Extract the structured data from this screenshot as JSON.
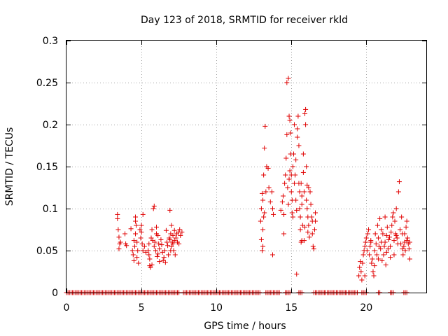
{
  "chart_data": {
    "type": "scatter",
    "title": "Day 123 of 2018, SRMTID for receiver rkld",
    "xlabel": "GPS time / hours",
    "ylabel": "SRMTID / TECUs",
    "xlim": [
      0,
      24
    ],
    "ylim": [
      0,
      0.3
    ],
    "xticks": [
      0,
      5,
      10,
      15,
      20
    ],
    "yticks": [
      0,
      0.05,
      0.1,
      0.15,
      0.2,
      0.25,
      0.3
    ],
    "xtick_labels": [
      "0",
      "5",
      "10",
      "15",
      "20"
    ],
    "ytick_labels": [
      "0",
      "0.05",
      "0.1",
      "0.15",
      "0.2",
      "0.25",
      "0.3"
    ],
    "grid": true,
    "marker": "+",
    "color": "#e00000",
    "series": [
      {
        "name": "SRMTID",
        "points": [
          [
            3.4,
            0.093
          ],
          [
            3.4,
            0.088
          ],
          [
            3.45,
            0.075
          ],
          [
            3.5,
            0.066
          ],
          [
            3.55,
            0.058
          ],
          [
            3.5,
            0.052
          ],
          [
            3.6,
            0.06
          ],
          [
            3.9,
            0.07
          ],
          [
            3.95,
            0.058
          ],
          [
            4.0,
            0.056
          ],
          [
            4.3,
            0.076
          ],
          [
            4.4,
            0.05
          ],
          [
            4.45,
            0.045
          ],
          [
            4.5,
            0.038
          ],
          [
            4.5,
            0.062
          ],
          [
            4.55,
            0.055
          ],
          [
            4.6,
            0.07
          ],
          [
            4.6,
            0.085
          ],
          [
            4.65,
            0.08
          ],
          [
            4.7,
            0.06
          ],
          [
            4.7,
            0.042
          ],
          [
            4.75,
            0.05
          ],
          [
            4.8,
            0.035
          ],
          [
            4.6,
            0.09
          ],
          [
            4.9,
            0.075
          ],
          [
            4.95,
            0.065
          ],
          [
            5.0,
            0.08
          ],
          [
            5.0,
            0.072
          ],
          [
            5.05,
            0.058
          ],
          [
            5.1,
            0.05
          ],
          [
            5.1,
            0.093
          ],
          [
            5.2,
            0.055
          ],
          [
            5.3,
            0.048
          ],
          [
            5.45,
            0.05
          ],
          [
            5.5,
            0.045
          ],
          [
            5.5,
            0.058
          ],
          [
            5.55,
            0.04
          ],
          [
            5.55,
            0.032
          ],
          [
            5.6,
            0.03
          ],
          [
            5.65,
            0.065
          ],
          [
            5.7,
            0.075
          ],
          [
            5.7,
            0.033
          ],
          [
            5.75,
            0.062
          ],
          [
            5.8,
            0.1
          ],
          [
            5.85,
            0.103
          ],
          [
            5.85,
            0.055
          ],
          [
            5.9,
            0.06
          ],
          [
            5.95,
            0.05
          ],
          [
            6.0,
            0.078
          ],
          [
            6.0,
            0.07
          ],
          [
            6.05,
            0.043
          ],
          [
            6.1,
            0.046
          ],
          [
            6.1,
            0.068
          ],
          [
            6.15,
            0.058
          ],
          [
            6.2,
            0.052
          ],
          [
            6.2,
            0.037
          ],
          [
            6.3,
            0.063
          ],
          [
            6.35,
            0.057
          ],
          [
            6.4,
            0.048
          ],
          [
            6.45,
            0.038
          ],
          [
            6.5,
            0.042
          ],
          [
            6.55,
            0.05
          ],
          [
            6.6,
            0.036
          ],
          [
            6.65,
            0.074
          ],
          [
            6.7,
            0.06
          ],
          [
            6.75,
            0.056
          ],
          [
            6.8,
            0.045
          ],
          [
            6.85,
            0.065
          ],
          [
            6.9,
            0.063
          ],
          [
            6.9,
            0.098
          ],
          [
            6.95,
            0.07
          ],
          [
            7.0,
            0.08
          ],
          [
            7.0,
            0.055
          ],
          [
            7.05,
            0.06
          ],
          [
            7.1,
            0.068
          ],
          [
            7.15,
            0.05
          ],
          [
            7.2,
            0.062
          ],
          [
            7.25,
            0.045
          ],
          [
            7.3,
            0.065
          ],
          [
            7.35,
            0.07
          ],
          [
            7.4,
            0.06
          ],
          [
            7.45,
            0.072
          ],
          [
            7.5,
            0.058
          ],
          [
            7.55,
            0.075
          ],
          [
            7.6,
            0.068
          ],
          [
            7.7,
            0.072
          ],
          [
            6.95,
            0.05
          ],
          [
            7.1,
            0.058
          ],
          [
            7.2,
            0.074
          ],
          [
            12.95,
            0.085
          ],
          [
            13.0,
            0.1
          ],
          [
            13.0,
            0.063
          ],
          [
            13.05,
            0.05
          ],
          [
            13.05,
            0.118
          ],
          [
            13.1,
            0.11
          ],
          [
            13.1,
            0.075
          ],
          [
            13.1,
            0.055
          ],
          [
            13.15,
            0.14
          ],
          [
            13.15,
            0.09
          ],
          [
            13.2,
            0.095
          ],
          [
            13.2,
            0.172
          ],
          [
            13.25,
            0.198
          ],
          [
            13.3,
            0.12
          ],
          [
            13.35,
            0.15
          ],
          [
            13.45,
            0.148
          ],
          [
            13.5,
            0.125
          ],
          [
            13.6,
            0.108
          ],
          [
            13.7,
            0.12
          ],
          [
            13.75,
            0.045
          ],
          [
            13.75,
            0.1
          ],
          [
            13.8,
            0.093
          ],
          [
            14.3,
            0.098
          ],
          [
            14.4,
            0.108
          ],
          [
            14.45,
            0.115
          ],
          [
            14.5,
            0.07
          ],
          [
            14.5,
            0.093
          ],
          [
            14.55,
            0.13
          ],
          [
            14.6,
            0.14
          ],
          [
            14.65,
            0.16
          ],
          [
            14.7,
            0.188
          ],
          [
            14.7,
            0.25
          ],
          [
            14.75,
            0.125
          ],
          [
            14.8,
            0.105
          ],
          [
            14.8,
            0.255
          ],
          [
            14.85,
            0.21
          ],
          [
            14.85,
            0.135
          ],
          [
            14.9,
            0.145
          ],
          [
            14.9,
            0.205
          ],
          [
            14.95,
            0.19
          ],
          [
            15.0,
            0.14
          ],
          [
            15.0,
            0.12
          ],
          [
            15.05,
            0.11
          ],
          [
            15.05,
            0.095
          ],
          [
            15.1,
            0.09
          ],
          [
            15.1,
            0.15
          ],
          [
            15.15,
            0.165
          ],
          [
            15.2,
            0.2
          ],
          [
            15.2,
            0.13
          ],
          [
            15.25,
            0.14
          ],
          [
            15.3,
            0.158
          ],
          [
            15.3,
            0.11
          ],
          [
            15.35,
            0.098
          ],
          [
            15.4,
            0.185
          ],
          [
            15.4,
            0.195
          ],
          [
            15.45,
            0.21
          ],
          [
            15.5,
            0.175
          ],
          [
            15.5,
            0.13
          ],
          [
            15.55,
            0.12
          ],
          [
            15.55,
            0.1
          ],
          [
            15.6,
            0.09
          ],
          [
            15.6,
            0.075
          ],
          [
            15.65,
            0.06
          ],
          [
            15.7,
            0.105
          ],
          [
            15.7,
            0.115
          ],
          [
            15.75,
            0.08
          ],
          [
            15.8,
            0.143
          ],
          [
            15.8,
            0.165
          ],
          [
            15.85,
            0.062
          ],
          [
            15.85,
            0.12
          ],
          [
            15.9,
            0.078
          ],
          [
            15.9,
            0.213
          ],
          [
            15.95,
            0.218
          ],
          [
            15.95,
            0.2
          ],
          [
            16.0,
            0.11
          ],
          [
            16.0,
            0.15
          ],
          [
            16.05,
            0.128
          ],
          [
            16.05,
            0.1
          ],
          [
            16.1,
            0.09
          ],
          [
            16.1,
            0.072
          ],
          [
            16.15,
            0.08
          ],
          [
            16.2,
            0.066
          ],
          [
            16.25,
            0.12
          ],
          [
            16.3,
            0.105
          ],
          [
            16.35,
            0.09
          ],
          [
            16.4,
            0.07
          ],
          [
            16.45,
            0.055
          ],
          [
            16.5,
            0.052
          ],
          [
            16.55,
            0.075
          ],
          [
            16.6,
            0.085
          ],
          [
            16.6,
            0.095
          ],
          [
            15.35,
            0.022
          ],
          [
            15.7,
            0.062
          ],
          [
            14.95,
            0.165
          ],
          [
            15.65,
            0.13
          ],
          [
            16.15,
            0.125
          ],
          [
            16.4,
            0.085
          ],
          [
            19.5,
            0.02
          ],
          [
            19.55,
            0.03
          ],
          [
            19.6,
            0.037
          ],
          [
            19.65,
            0.025
          ],
          [
            19.7,
            0.015
          ],
          [
            19.75,
            0.035
          ],
          [
            19.8,
            0.045
          ],
          [
            19.85,
            0.05
          ],
          [
            19.9,
            0.055
          ],
          [
            19.95,
            0.06
          ],
          [
            20.0,
            0.065
          ],
          [
            20.05,
            0.05
          ],
          [
            20.1,
            0.07
          ],
          [
            20.15,
            0.075
          ],
          [
            20.2,
            0.045
          ],
          [
            20.25,
            0.055
          ],
          [
            20.3,
            0.06
          ],
          [
            20.35,
            0.035
          ],
          [
            20.4,
            0.04
          ],
          [
            20.45,
            0.025
          ],
          [
            20.5,
            0.02
          ],
          [
            20.55,
            0.05
          ],
          [
            20.6,
            0.07
          ],
          [
            20.65,
            0.058
          ],
          [
            20.7,
            0.045
          ],
          [
            20.75,
            0.08
          ],
          [
            20.8,
            0.065
          ],
          [
            20.85,
            0.055
          ],
          [
            20.9,
            0.088
          ],
          [
            20.95,
            0.052
          ],
          [
            21.0,
            0.06
          ],
          [
            21.05,
            0.038
          ],
          [
            21.1,
            0.07
          ],
          [
            21.15,
            0.045
          ],
          [
            21.2,
            0.055
          ],
          [
            21.25,
            0.06
          ],
          [
            21.3,
            0.033
          ],
          [
            21.35,
            0.048
          ],
          [
            21.4,
            0.078
          ],
          [
            21.45,
            0.052
          ],
          [
            21.5,
            0.063
          ],
          [
            21.55,
            0.066
          ],
          [
            21.6,
            0.042
          ],
          [
            21.65,
            0.072
          ],
          [
            21.7,
            0.08
          ],
          [
            21.75,
            0.09
          ],
          [
            21.8,
            0.095
          ],
          [
            21.85,
            0.062
          ],
          [
            21.9,
            0.085
          ],
          [
            21.95,
            0.07
          ],
          [
            22.0,
            0.1
          ],
          [
            22.05,
            0.065
          ],
          [
            22.1,
            0.058
          ],
          [
            22.15,
            0.12
          ],
          [
            22.2,
            0.132
          ],
          [
            22.25,
            0.075
          ],
          [
            22.3,
            0.058
          ],
          [
            22.35,
            0.09
          ],
          [
            22.4,
            0.07
          ],
          [
            22.45,
            0.045
          ],
          [
            22.5,
            0.055
          ],
          [
            22.55,
            0.06
          ],
          [
            22.6,
            0.05
          ],
          [
            22.65,
            0.078
          ],
          [
            22.7,
            0.085
          ],
          [
            22.75,
            0.065
          ],
          [
            22.8,
            0.058
          ],
          [
            22.85,
            0.052
          ],
          [
            22.9,
            0.04
          ],
          [
            22.9,
            0.06
          ],
          [
            20.3,
            0.062
          ],
          [
            20.8,
            0.04
          ],
          [
            21.25,
            0.09
          ],
          [
            21.6,
            0.055
          ],
          [
            22.0,
            0.068
          ],
          [
            22.4,
            0.052
          ],
          [
            22.55,
            0.07
          ],
          [
            22.7,
            0.062
          ],
          [
            19.9,
            0.02
          ],
          [
            20.55,
            0.032
          ],
          [
            21.0,
            0.075
          ],
          [
            21.35,
            0.068
          ],
          [
            21.85,
            0.045
          ]
        ],
        "zero_ranges": [
          [
            0,
            7.5
          ],
          [
            7.8,
            12.9
          ],
          [
            13.3,
            14.2
          ],
          [
            14.6,
            14.9
          ],
          [
            15.5,
            15.7
          ],
          [
            16.5,
            19.4
          ],
          [
            19.7,
            20.0
          ],
          [
            20.8,
            20.9
          ],
          [
            21.6,
            21.8
          ],
          [
            22.5,
            22.7
          ]
        ],
        "zero_step": 0.1
      }
    ]
  }
}
